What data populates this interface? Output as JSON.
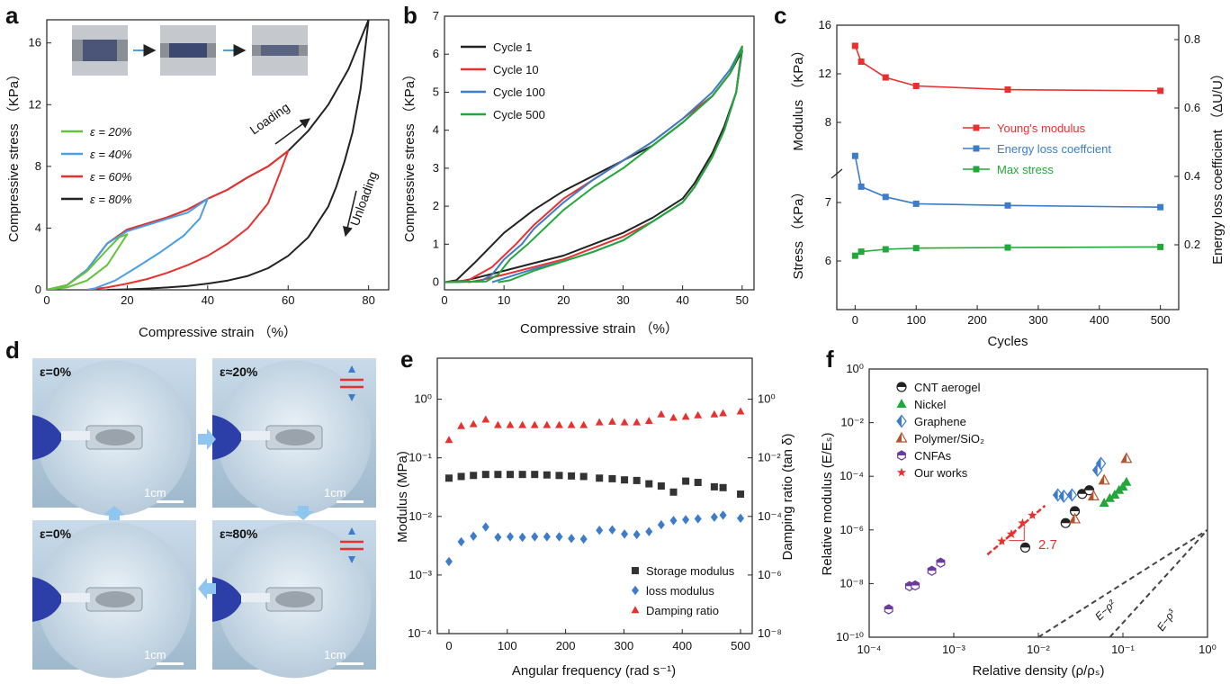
{
  "panel_labels": [
    "a",
    "b",
    "c",
    "d",
    "e",
    "f"
  ],
  "colors": {
    "black": "#222222",
    "red": "#e8302f",
    "blue": "#3d7cc9",
    "green": "#22a83a",
    "lightgreen": "#62c43c",
    "lightblue": "#4aa0e0",
    "brown": "#b5532f",
    "purple": "#6a3a9e",
    "gray": "#333333"
  },
  "panel_d": {
    "photos": [
      "ε=0%",
      "ε≈20%",
      "ε=0%",
      "ε≈80%"
    ],
    "scale": "1cm"
  },
  "annotations": {
    "a_loading": "Loading",
    "a_unloading": "Unloading",
    "f_slope": "2.7",
    "f_line2": "E~ρ²",
    "f_line3": "E~ρ³"
  },
  "chart_data": [
    {
      "id": "a",
      "type": "line",
      "xlabel": "Compressive strain （%）",
      "ylabel": "Compressive stress （KPa）",
      "xlim": [
        0,
        85
      ],
      "ylim": [
        0,
        17.5
      ],
      "xticks": [
        "0",
        "20",
        "40",
        "60",
        "80"
      ],
      "yticks": [
        "0",
        "4",
        "8",
        "12",
        "16"
      ],
      "series": [
        {
          "name": "ε = 20%",
          "color": "#62c43c",
          "x": [
            0,
            5,
            10,
            15,
            18,
            20,
            18,
            15,
            10,
            5,
            0
          ],
          "y": [
            0,
            0.3,
            1.2,
            2.6,
            3.4,
            3.6,
            2.8,
            1.6,
            0.6,
            0.15,
            0
          ]
        },
        {
          "name": "ε = 40%",
          "color": "#4aa0e0",
          "x": [
            0,
            5,
            10,
            15,
            20,
            25,
            30,
            35,
            40,
            38,
            34,
            28,
            22,
            17,
            12,
            10
          ],
          "y": [
            0,
            0.3,
            1.3,
            3.0,
            3.8,
            4.2,
            4.6,
            5.0,
            5.9,
            4.6,
            3.5,
            2.4,
            1.4,
            0.6,
            0.1,
            0
          ]
        },
        {
          "name": "ε = 60%",
          "color": "#e8302f",
          "x": [
            0,
            5,
            10,
            15,
            20,
            25,
            30,
            35,
            40,
            45,
            50,
            55,
            60,
            58,
            55,
            50,
            45,
            40,
            35,
            30,
            25,
            20,
            15,
            10
          ],
          "y": [
            0,
            0.3,
            1.3,
            3.0,
            3.9,
            4.3,
            4.7,
            5.2,
            5.9,
            6.5,
            7.3,
            8.0,
            9.0,
            7.6,
            5.6,
            4.0,
            3.0,
            2.2,
            1.6,
            1.1,
            0.7,
            0.4,
            0.15,
            0
          ]
        },
        {
          "name": "ε = 80%",
          "color": "#222222",
          "x": [
            0,
            5,
            10,
            15,
            20,
            25,
            30,
            35,
            40,
            45,
            50,
            55,
            60,
            65,
            70,
            75,
            80,
            78,
            76,
            74,
            72,
            70,
            65,
            60,
            55,
            50,
            45,
            40,
            35,
            30,
            25,
            20,
            15
          ],
          "y": [
            0,
            0.3,
            1.3,
            3.0,
            3.9,
            4.3,
            4.7,
            5.2,
            5.9,
            6.5,
            7.3,
            8.0,
            9.0,
            10.3,
            12.0,
            14.3,
            17.5,
            13.0,
            10.2,
            8.3,
            6.7,
            5.4,
            3.4,
            2.2,
            1.4,
            0.9,
            0.6,
            0.4,
            0.25,
            0.15,
            0.08,
            0.03,
            0
          ]
        }
      ]
    },
    {
      "id": "b",
      "type": "line",
      "xlabel": "Compressive strain （%）",
      "ylabel": "Compressive stress （KPa）",
      "xlim": [
        0,
        52
      ],
      "ylim": [
        -0.2,
        7
      ],
      "xticks": [
        "0",
        "10",
        "20",
        "30",
        "40",
        "50"
      ],
      "yticks": [
        "0",
        "1",
        "2",
        "3",
        "4",
        "5",
        "6",
        "7"
      ],
      "series": [
        {
          "name": "Cycle 1",
          "color": "#222222",
          "x": [
            0,
            2,
            5,
            10,
            15,
            20,
            25,
            30,
            35,
            40,
            45,
            48,
            50,
            49,
            47,
            45,
            42,
            40,
            35,
            30,
            25,
            20,
            15,
            10,
            5,
            2
          ],
          "y": [
            0,
            0.05,
            0.5,
            1.3,
            1.9,
            2.4,
            2.8,
            3.2,
            3.6,
            4.2,
            4.9,
            5.5,
            6.1,
            5.0,
            4.1,
            3.4,
            2.6,
            2.2,
            1.7,
            1.3,
            1.0,
            0.7,
            0.5,
            0.3,
            0.1,
            0
          ]
        },
        {
          "name": "Cycle 10",
          "color": "#e8302f",
          "x": [
            0,
            4,
            8,
            12,
            15,
            20,
            25,
            30,
            35,
            40,
            45,
            48,
            50,
            49,
            47,
            45,
            42,
            40,
            35,
            30,
            25,
            20,
            15,
            10,
            6,
            4
          ],
          "y": [
            0,
            0.05,
            0.4,
            1.0,
            1.5,
            2.2,
            2.7,
            3.2,
            3.7,
            4.3,
            4.9,
            5.5,
            6.2,
            5.0,
            4.0,
            3.3,
            2.5,
            2.1,
            1.6,
            1.2,
            0.9,
            0.6,
            0.4,
            0.2,
            0.05,
            0
          ]
        },
        {
          "name": "Cycle 100",
          "color": "#3d7cc9",
          "x": [
            0,
            6,
            8,
            10,
            13,
            15,
            20,
            25,
            30,
            35,
            40,
            45,
            48,
            50,
            49,
            47,
            45,
            42,
            40,
            35,
            30,
            25,
            20,
            15,
            10,
            8
          ],
          "y": [
            0,
            0.02,
            0.2,
            0.6,
            1.0,
            1.4,
            2.1,
            2.7,
            3.2,
            3.7,
            4.3,
            5.0,
            5.6,
            6.2,
            5.0,
            4.0,
            3.3,
            2.5,
            2.1,
            1.6,
            1.1,
            0.8,
            0.55,
            0.35,
            0.1,
            0
          ]
        },
        {
          "name": "Cycle 500",
          "color": "#22a83a",
          "x": [
            0,
            7,
            9,
            11,
            14,
            16,
            20,
            25,
            30,
            35,
            40,
            45,
            48,
            50,
            49,
            47,
            45,
            42,
            40,
            35,
            30,
            25,
            20,
            15,
            11,
            9
          ],
          "y": [
            0,
            0.02,
            0.2,
            0.6,
            1.0,
            1.3,
            1.9,
            2.5,
            3.0,
            3.6,
            4.2,
            4.9,
            5.5,
            6.2,
            5.0,
            4.0,
            3.3,
            2.5,
            2.1,
            1.6,
            1.1,
            0.8,
            0.55,
            0.3,
            0.05,
            0
          ]
        }
      ]
    },
    {
      "id": "c",
      "type": "line",
      "xlabel": "Cycles",
      "ylabel_top": "Modulus （KPa）",
      "ylabel_bottom": "Stress （KPa）",
      "ylabel_right": "Energy loss coefficient （ΔU/U）",
      "xlim": [
        -30,
        530
      ],
      "xticks": [
        "0",
        "100",
        "200",
        "300",
        "400",
        "500"
      ],
      "left_ticks": [
        "16",
        "12",
        "8",
        "7",
        "6"
      ],
      "right_ticks": [
        "0.8",
        "0.6",
        "0.4",
        "0.2"
      ],
      "x": [
        0,
        10,
        50,
        100,
        250,
        500
      ],
      "series": [
        {
          "name": "Young's modulus",
          "color": "#e8302f",
          "axis": "modulus",
          "values": [
            14.3,
            13.0,
            11.7,
            11.0,
            10.7,
            10.6
          ]
        },
        {
          "name": "Energy loss coeffcient",
          "color": "#3d7cc9",
          "axis": "energy",
          "values": [
            0.46,
            0.37,
            0.34,
            0.32,
            0.315,
            0.31
          ]
        },
        {
          "name": "Max stress",
          "color": "#22a83a",
          "axis": "stress",
          "values": [
            6.09,
            6.16,
            6.2,
            6.22,
            6.23,
            6.24
          ]
        }
      ]
    },
    {
      "id": "e",
      "type": "scatter",
      "xlabel": "Angular frequency (rad s⁻¹)",
      "ylabel": "Modulus (MPa)",
      "ylabel_right": "Damping ratio (tan δ)",
      "xlim": [
        -20,
        520
      ],
      "ylog": [
        -4,
        0.7
      ],
      "yrlog": [
        -8,
        1.4
      ],
      "xticks": [
        "0",
        "100",
        "200",
        "300",
        "400",
        "500"
      ],
      "yticks": [
        "10⁻⁴",
        "10⁻³",
        "10⁻²",
        "10⁻¹",
        "10⁰"
      ],
      "yrticks": [
        "10⁻⁸",
        "10⁻⁶",
        "10⁻⁴",
        "10⁻²",
        "10⁰"
      ],
      "x": [
        0,
        21,
        42,
        63,
        84,
        105,
        126,
        147,
        168,
        189,
        210,
        231,
        258,
        280,
        301,
        322,
        343,
        364,
        385,
        406,
        427,
        455,
        470,
        500
      ],
      "series": [
        {
          "name": "Storage modulus",
          "color": "#333333",
          "marker": "square",
          "values": [
            0.045,
            0.048,
            0.05,
            0.052,
            0.052,
            0.052,
            0.052,
            0.052,
            0.051,
            0.05,
            0.049,
            0.048,
            0.045,
            0.044,
            0.042,
            0.041,
            0.036,
            0.033,
            0.026,
            0.04,
            0.038,
            0.032,
            0.031,
            0.024
          ]
        },
        {
          "name": "loss modulus",
          "color": "#3d7cc9",
          "marker": "diamond",
          "values": [
            0.0017,
            0.0037,
            0.0046,
            0.0066,
            0.0044,
            0.0045,
            0.0044,
            0.0045,
            0.0045,
            0.0045,
            0.0042,
            0.0041,
            0.0058,
            0.0059,
            0.005,
            0.0049,
            0.0055,
            0.0072,
            0.0085,
            0.0088,
            0.0091,
            0.0097,
            0.0105,
            0.0093
          ]
        },
        {
          "name": "Damping ratio",
          "color": "#e8302f",
          "marker": "triangle",
          "axis": "right",
          "values": [
            0.04,
            0.12,
            0.14,
            0.2,
            0.13,
            0.13,
            0.13,
            0.13,
            0.13,
            0.13,
            0.13,
            0.13,
            0.16,
            0.17,
            0.16,
            0.16,
            0.18,
            0.3,
            0.23,
            0.25,
            0.28,
            0.3,
            0.33,
            0.38
          ]
        }
      ]
    },
    {
      "id": "f",
      "type": "scatter",
      "xlabel": "Relative density (ρ/ρₛ)",
      "ylabel": "Relative modulus (E/Eₛ)",
      "xlog": [
        -4,
        0
      ],
      "ylog": [
        -10,
        0
      ],
      "xticks": [
        "10⁻⁴",
        "10⁻³",
        "10⁻²",
        "10⁻¹",
        "10⁰"
      ],
      "yticks": [
        "10⁻¹⁰",
        "10⁻⁸",
        "10⁻⁶",
        "10⁻⁴",
        "10⁻²",
        "10⁰"
      ],
      "series": [
        {
          "name": "CNT aerogel",
          "color": "#222222",
          "marker": "halfcircle",
          "points": [
            [
              0.007,
              2.2e-07
            ],
            [
              0.021,
              1.8e-06
            ],
            [
              0.027,
              5e-06
            ],
            [
              0.033,
              2.2e-05
            ],
            [
              0.04,
              3e-05
            ]
          ]
        },
        {
          "name": "Nickel",
          "color": "#22a83a",
          "marker": "triangle",
          "points": [
            [
              0.06,
              1e-05
            ],
            [
              0.07,
              1.5e-05
            ],
            [
              0.08,
              2e-05
            ],
            [
              0.09,
              3e-05
            ],
            [
              0.1,
              4e-05
            ],
            [
              0.11,
              6e-05
            ]
          ]
        },
        {
          "name": "Graphene",
          "color": "#3d7cc9",
          "marker": "halfdiamond",
          "points": [
            [
              0.017,
              2e-05
            ],
            [
              0.02,
              1.8e-05
            ],
            [
              0.025,
              2e-05
            ],
            [
              0.05,
              0.00017
            ],
            [
              0.055,
              0.0003
            ]
          ]
        },
        {
          "name": "Polymer/SiO₂",
          "color": "#b5532f",
          "marker": "halftriangle",
          "points": [
            [
              0.027,
              2.5e-06
            ],
            [
              0.045,
              1.8e-05
            ],
            [
              0.06,
              7e-05
            ],
            [
              0.11,
              0.00045
            ]
          ]
        },
        {
          "name": "CNFAs",
          "color": "#6a3a9e",
          "marker": "halfhex",
          "points": [
            [
              0.00017,
              1.1e-09
            ],
            [
              0.0003,
              8e-09
            ],
            [
              0.00035,
              8.5e-09
            ],
            [
              0.00055,
              3e-08
            ],
            [
              0.0007,
              6e-08
            ]
          ]
        },
        {
          "name": "Our works",
          "color": "#e8302f",
          "marker": "star",
          "points": [
            [
              0.0037,
              3.8e-07
            ],
            [
              0.0048,
              7e-07
            ],
            [
              0.0065,
              1.8e-06
            ],
            [
              0.0085,
              3.5e-06
            ]
          ]
        }
      ]
    }
  ]
}
